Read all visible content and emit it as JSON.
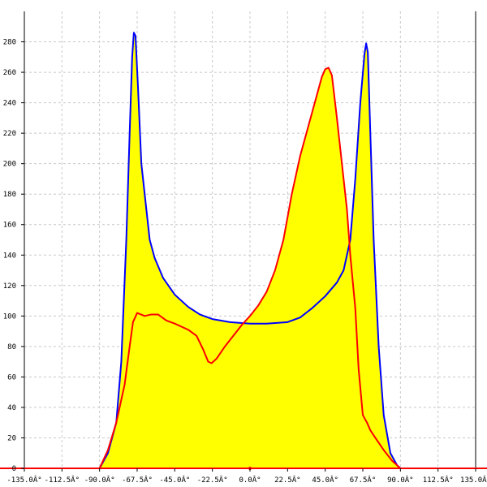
{
  "chart_data": {
    "type": "area",
    "title": "",
    "xlabel": "",
    "ylabel": "",
    "xlim": [
      -135,
      135
    ],
    "ylim": [
      0,
      300
    ],
    "grid": true,
    "x_ticks": [
      -135,
      -112.5,
      -90,
      -67.5,
      -45,
      -22.5,
      0,
      22.5,
      45,
      67.5,
      90,
      112.5,
      135
    ],
    "x_tick_labels": [
      "-135.0Â°",
      "-112.5Â°",
      "-90.0Â°",
      "-67.5Â°",
      "-45.0Â°",
      "-22.5Â°",
      "0.0Â°",
      "22.5Â°",
      "45.0Â°",
      "67.5Â°",
      "90.0Â°",
      "112.5Â°",
      "135.0Â°"
    ],
    "y_ticks": [
      0,
      20,
      40,
      60,
      80,
      100,
      120,
      140,
      160,
      180,
      200,
      220,
      240,
      260,
      280
    ],
    "y_tick_labels": [
      "0",
      "20",
      "40",
      "60",
      "80",
      "100",
      "120",
      "140",
      "160",
      "180",
      "200",
      "220",
      "240",
      "260",
      "280"
    ],
    "fill_color": "#ffff00",
    "series": [
      {
        "color": "#0000ff",
        "points": [
          [
            -135,
            0
          ],
          [
            -90,
            0
          ],
          [
            -85,
            10
          ],
          [
            -80,
            30
          ],
          [
            -77,
            70
          ],
          [
            -74,
            150
          ],
          [
            -72,
            220
          ],
          [
            -70.5,
            270
          ],
          [
            -69.5,
            286
          ],
          [
            -68.5,
            284
          ],
          [
            -67,
            250
          ],
          [
            -65,
            200
          ],
          [
            -62,
            170
          ],
          [
            -60,
            150
          ],
          [
            -57,
            138
          ],
          [
            -52,
            125
          ],
          [
            -45,
            114
          ],
          [
            -37,
            106
          ],
          [
            -30,
            101
          ],
          [
            -22.5,
            98
          ],
          [
            -12,
            96
          ],
          [
            0,
            95
          ],
          [
            10,
            95
          ],
          [
            22.5,
            96
          ],
          [
            30,
            99
          ],
          [
            37,
            105
          ],
          [
            45,
            113
          ],
          [
            52,
            122
          ],
          [
            56,
            130
          ],
          [
            60,
            150
          ],
          [
            63,
            190
          ],
          [
            66,
            240
          ],
          [
            68.5,
            272
          ],
          [
            69.5,
            279
          ],
          [
            70.5,
            273
          ],
          [
            72,
            220
          ],
          [
            74,
            150
          ],
          [
            77,
            80
          ],
          [
            80,
            35
          ],
          [
            84,
            10
          ],
          [
            88,
            2
          ],
          [
            90,
            0
          ],
          [
            135,
            0
          ]
        ]
      },
      {
        "color": "#ff0000",
        "points": [
          [
            -135,
            0
          ],
          [
            -90,
            0
          ],
          [
            -85,
            12
          ],
          [
            -80,
            30
          ],
          [
            -75,
            55
          ],
          [
            -72,
            80
          ],
          [
            -70,
            96
          ],
          [
            -67.5,
            102
          ],
          [
            -63,
            100
          ],
          [
            -59,
            101
          ],
          [
            -55,
            101
          ],
          [
            -50,
            97
          ],
          [
            -45,
            95
          ],
          [
            -37,
            91
          ],
          [
            -32,
            87
          ],
          [
            -28,
            78
          ],
          [
            -25,
            70
          ],
          [
            -23,
            69
          ],
          [
            -20,
            72
          ],
          [
            -15,
            80
          ],
          [
            -10,
            87
          ],
          [
            -5,
            94
          ],
          [
            0,
            100
          ],
          [
            5,
            107
          ],
          [
            10,
            116
          ],
          [
            15,
            130
          ],
          [
            20,
            150
          ],
          [
            25,
            180
          ],
          [
            30,
            205
          ],
          [
            35,
            225
          ],
          [
            40,
            245
          ],
          [
            43,
            257
          ],
          [
            45,
            262
          ],
          [
            47,
            263
          ],
          [
            49,
            258
          ],
          [
            52,
            230
          ],
          [
            55,
            200
          ],
          [
            58,
            170
          ],
          [
            60,
            140
          ],
          [
            63,
            105
          ],
          [
            65,
            65
          ],
          [
            67.5,
            35
          ],
          [
            70,
            30
          ],
          [
            72,
            25
          ],
          [
            75,
            20
          ],
          [
            80,
            12
          ],
          [
            85,
            5
          ],
          [
            90,
            0
          ],
          [
            135,
            0
          ]
        ]
      }
    ]
  }
}
